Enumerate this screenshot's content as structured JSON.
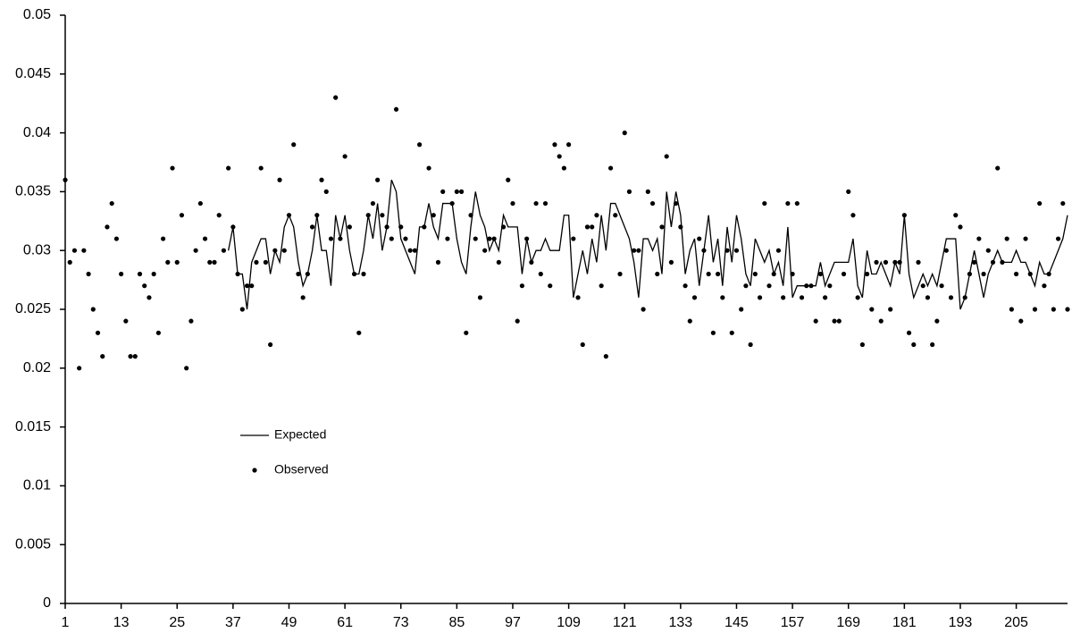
{
  "chart_data": {
    "type": "line",
    "x": [
      1,
      2,
      3,
      4,
      5,
      6,
      7,
      8,
      9,
      10,
      11,
      12,
      13,
      14,
      15,
      16,
      17,
      18,
      19,
      20,
      21,
      22,
      23,
      24,
      25,
      26,
      27,
      28,
      29,
      30,
      31,
      32,
      33,
      34,
      35,
      36,
      37,
      38,
      39,
      40,
      41,
      42,
      43,
      44,
      45,
      46,
      47,
      48,
      49,
      50,
      51,
      52,
      53,
      54,
      55,
      56,
      57,
      58,
      59,
      60,
      61,
      62,
      63,
      64,
      65,
      66,
      67,
      68,
      69,
      70,
      71,
      72,
      73,
      74,
      75,
      76,
      77,
      78,
      79,
      80,
      81,
      82,
      83,
      84,
      85,
      86,
      87,
      88,
      89,
      90,
      91,
      92,
      93,
      94,
      95,
      96,
      97,
      98,
      99,
      100,
      101,
      102,
      103,
      104,
      105,
      106,
      107,
      108,
      109,
      110,
      111,
      112,
      113,
      114,
      115,
      116,
      117,
      118,
      119,
      120,
      121,
      122,
      123,
      124,
      125,
      126,
      127,
      128,
      129,
      130,
      131,
      132,
      133,
      134,
      135,
      136,
      137,
      138,
      139,
      140,
      141,
      142,
      143,
      144,
      145,
      146,
      147,
      148,
      149,
      150,
      151,
      152,
      153,
      154,
      155,
      156,
      157,
      158,
      159,
      160,
      161,
      162,
      163,
      164,
      165,
      166,
      167,
      168,
      169,
      170,
      171,
      172,
      173,
      174,
      175,
      176,
      177,
      178,
      179,
      180,
      181,
      182,
      183,
      184,
      185,
      186,
      187,
      188,
      189,
      190,
      191,
      192,
      193,
      194,
      195,
      196,
      197,
      198,
      199,
      200,
      201,
      202,
      203,
      204,
      205,
      206,
      207,
      208,
      209,
      210,
      211,
      212,
      213,
      214,
      215,
      216
    ],
    "series": [
      {
        "name": "Expected",
        "color": "#000000",
        "style": "line",
        "values": [
          null,
          null,
          null,
          null,
          null,
          null,
          null,
          null,
          null,
          null,
          null,
          null,
          null,
          null,
          null,
          null,
          null,
          null,
          null,
          null,
          null,
          null,
          null,
          null,
          null,
          null,
          null,
          null,
          null,
          null,
          null,
          null,
          null,
          null,
          null,
          0.03,
          0.032,
          0.028,
          0.028,
          0.025,
          0.029,
          0.03,
          0.031,
          0.031,
          0.028,
          0.03,
          0.029,
          0.032,
          0.033,
          0.032,
          0.029,
          0.027,
          0.028,
          0.03,
          0.033,
          0.03,
          0.03,
          0.027,
          0.033,
          0.031,
          0.033,
          0.03,
          0.028,
          0.028,
          0.03,
          0.033,
          0.031,
          0.034,
          0.03,
          0.032,
          0.036,
          0.035,
          0.031,
          0.03,
          0.029,
          0.028,
          0.032,
          0.032,
          0.034,
          0.032,
          0.031,
          0.034,
          0.034,
          0.034,
          0.031,
          0.029,
          0.028,
          0.032,
          0.035,
          0.033,
          0.032,
          0.03,
          0.031,
          0.03,
          0.033,
          0.032,
          0.032,
          0.032,
          0.028,
          0.031,
          0.029,
          0.03,
          0.03,
          0.031,
          0.03,
          0.03,
          0.03,
          0.033,
          0.033,
          0.026,
          0.028,
          0.03,
          0.028,
          0.031,
          0.029,
          0.033,
          0.03,
          0.034,
          0.034,
          0.033,
          0.032,
          0.031,
          0.029,
          0.026,
          0.031,
          0.031,
          0.03,
          0.031,
          0.028,
          0.035,
          0.032,
          0.035,
          0.033,
          0.028,
          0.03,
          0.031,
          0.027,
          0.03,
          0.033,
          0.029,
          0.031,
          0.027,
          0.032,
          0.029,
          0.033,
          0.031,
          0.028,
          0.027,
          0.031,
          0.03,
          0.029,
          0.03,
          0.028,
          0.029,
          0.027,
          0.032,
          0.026,
          0.027,
          0.027,
          0.027,
          0.027,
          0.027,
          0.029,
          0.027,
          0.028,
          0.029,
          0.029,
          0.029,
          0.029,
          0.031,
          0.027,
          0.026,
          0.03,
          0.028,
          0.028,
          0.029,
          0.028,
          0.027,
          0.029,
          0.028,
          0.033,
          0.028,
          0.026,
          0.027,
          0.028,
          0.027,
          0.028,
          0.027,
          0.029,
          0.031,
          0.031,
          0.031,
          0.025,
          0.026,
          0.028,
          0.03,
          0.028,
          0.026,
          0.028,
          0.029,
          0.03,
          0.029,
          0.029,
          0.029,
          0.03,
          0.029,
          0.029,
          0.028,
          0.027,
          0.029,
          0.028,
          0.028,
          0.029,
          0.03,
          0.031,
          0.033
        ]
      },
      {
        "name": "Observed",
        "color": "#000000",
        "style": "markers",
        "values": [
          0.036,
          0.029,
          0.03,
          0.02,
          0.03,
          0.028,
          0.025,
          0.023,
          0.021,
          0.032,
          0.034,
          0.031,
          0.028,
          0.024,
          0.021,
          0.021,
          0.028,
          0.027,
          0.026,
          0.028,
          0.023,
          0.031,
          0.029,
          0.037,
          0.029,
          0.033,
          0.02,
          0.024,
          0.03,
          0.034,
          0.031,
          0.029,
          0.029,
          0.033,
          0.03,
          0.037,
          0.032,
          0.028,
          0.025,
          0.027,
          0.027,
          0.029,
          0.037,
          0.029,
          0.022,
          0.03,
          0.036,
          0.03,
          0.033,
          0.039,
          0.028,
          0.026,
          0.028,
          0.032,
          0.033,
          0.036,
          0.035,
          0.031,
          0.043,
          0.031,
          0.038,
          0.032,
          0.028,
          0.023,
          0.028,
          0.033,
          0.034,
          0.036,
          0.033,
          0.032,
          0.031,
          0.042,
          0.032,
          0.031,
          0.03,
          0.03,
          0.039,
          0.032,
          0.037,
          0.033,
          0.029,
          0.035,
          0.031,
          0.034,
          0.035,
          0.035,
          0.023,
          0.033,
          0.031,
          0.026,
          0.03,
          0.031,
          0.031,
          0.029,
          0.032,
          0.036,
          0.034,
          0.024,
          0.027,
          0.031,
          0.029,
          0.034,
          0.028,
          0.034,
          0.027,
          0.039,
          0.038,
          0.037,
          0.039,
          0.031,
          0.026,
          0.022,
          0.032,
          0.032,
          0.033,
          0.027,
          0.021,
          0.037,
          0.033,
          0.028,
          0.04,
          0.035,
          0.03,
          0.03,
          0.025,
          0.035,
          0.034,
          0.028,
          0.032,
          0.038,
          0.029,
          0.034,
          0.032,
          0.027,
          0.024,
          0.026,
          0.031,
          0.03,
          0.028,
          0.023,
          0.028,
          0.026,
          0.03,
          0.023,
          0.03,
          0.025,
          0.027,
          0.022,
          0.028,
          0.026,
          0.034,
          0.027,
          0.028,
          0.03,
          0.026,
          0.034,
          0.028,
          0.034,
          0.026,
          0.027,
          0.027,
          0.024,
          0.028,
          0.026,
          0.027,
          0.024,
          0.024,
          0.028,
          0.035,
          0.033,
          0.026,
          0.022,
          0.028,
          0.025,
          0.029,
          0.024,
          0.029,
          0.025,
          0.029,
          0.029,
          0.033,
          0.023,
          0.022,
          0.029,
          0.027,
          0.026,
          0.022,
          0.024,
          0.027,
          0.03,
          0.026,
          0.033,
          0.032,
          0.026,
          0.028,
          0.029,
          0.031,
          0.028,
          0.03,
          0.029,
          0.037,
          0.029,
          0.031,
          0.025,
          0.028,
          0.024,
          0.031,
          0.028,
          0.025,
          0.034,
          0.027,
          0.028,
          0.025,
          0.031,
          0.034,
          0.025
        ]
      }
    ],
    "xlim": [
      1,
      216
    ],
    "xticks": [
      1,
      13,
      25,
      37,
      49,
      61,
      73,
      85,
      97,
      109,
      121,
      133,
      145,
      157,
      169,
      181,
      193,
      205
    ],
    "ylim": [
      0,
      0.05
    ],
    "yticks": [
      0,
      0.005,
      0.01,
      0.015,
      0.02,
      0.025,
      0.03,
      0.035,
      0.04,
      0.045,
      0.05
    ],
    "grid": false
  }
}
